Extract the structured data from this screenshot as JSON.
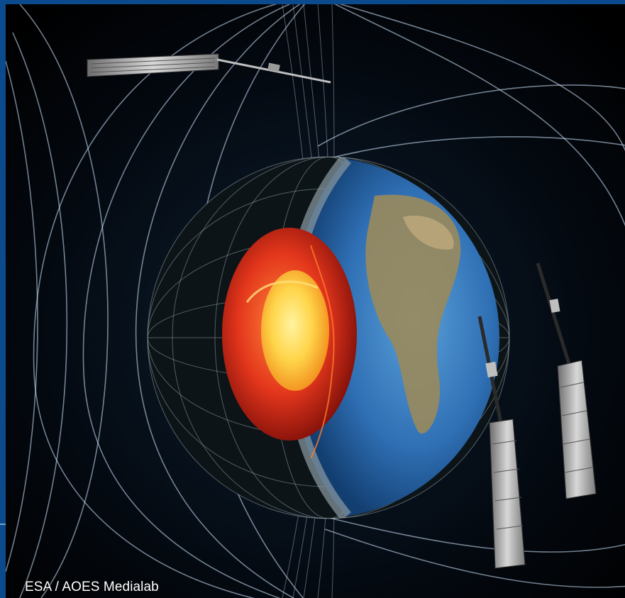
{
  "image": {
    "subject": "",
    "credit": "ESA / AOES Medialab",
    "colors": {
      "frame": "#0b4a8c",
      "space": "#000000",
      "field_lines": "#cfe6ff",
      "core_hot": "#ffd54a",
      "mantle_red": "#e3361c",
      "ocean": "#2f6fb4",
      "land": "#9a8a5c"
    }
  }
}
